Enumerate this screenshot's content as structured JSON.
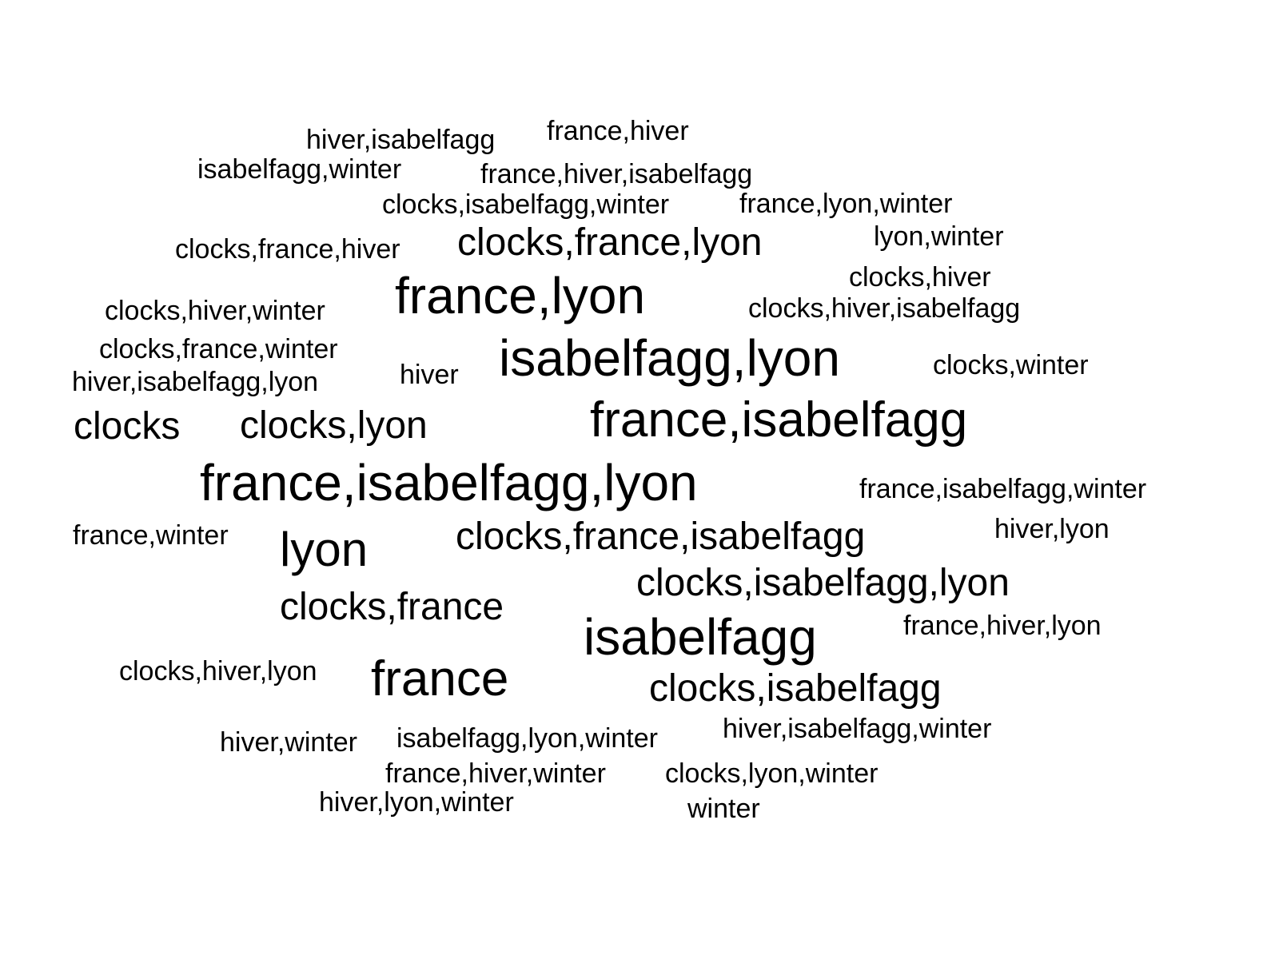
{
  "chart_data": {
    "type": "wordcloud",
    "title": "",
    "color": "#000000",
    "background": "#ffffff",
    "words": [
      {
        "text": "isabelfagg",
        "weight": 64
      },
      {
        "text": "france,isabelfagg,lyon",
        "weight": 64
      },
      {
        "text": "isabelfagg,lyon",
        "weight": 64
      },
      {
        "text": "france,isabelfagg",
        "weight": 62
      },
      {
        "text": "france,lyon",
        "weight": 64
      },
      {
        "text": "france",
        "weight": 62
      },
      {
        "text": "lyon",
        "weight": 60
      },
      {
        "text": "clocks,isabelfagg",
        "weight": 48
      },
      {
        "text": "clocks,isabelfagg,lyon",
        "weight": 48
      },
      {
        "text": "clocks,france,isabelfagg",
        "weight": 48
      },
      {
        "text": "clocks,france",
        "weight": 48
      },
      {
        "text": "clocks,lyon",
        "weight": 48
      },
      {
        "text": "clocks,france,lyon",
        "weight": 48
      },
      {
        "text": "clocks",
        "weight": 48
      },
      {
        "text": "hiver",
        "weight": 34
      },
      {
        "text": "winter",
        "weight": 34
      },
      {
        "text": "hiver,winter",
        "weight": 34
      },
      {
        "text": "hiver,isabelfagg",
        "weight": 34
      },
      {
        "text": "france,hiver",
        "weight": 34
      },
      {
        "text": "isabelfagg,winter",
        "weight": 34
      },
      {
        "text": "france,hiver,isabelfagg",
        "weight": 34
      },
      {
        "text": "clocks,isabelfagg,winter",
        "weight": 34
      },
      {
        "text": "france,lyon,winter",
        "weight": 34
      },
      {
        "text": "clocks,france,hiver",
        "weight": 34
      },
      {
        "text": "lyon,winter",
        "weight": 34
      },
      {
        "text": "clocks,hiver",
        "weight": 34
      },
      {
        "text": "clocks,hiver,winter",
        "weight": 34
      },
      {
        "text": "clocks,hiver,isabelfagg",
        "weight": 34
      },
      {
        "text": "clocks,france,winter",
        "weight": 34
      },
      {
        "text": "clocks,winter",
        "weight": 34
      },
      {
        "text": "hiver,isabelfagg,lyon",
        "weight": 34
      },
      {
        "text": "france,isabelfagg,winter",
        "weight": 34
      },
      {
        "text": "france,winter",
        "weight": 34
      },
      {
        "text": "hiver,lyon",
        "weight": 34
      },
      {
        "text": "france,hiver,lyon",
        "weight": 34
      },
      {
        "text": "clocks,hiver,lyon",
        "weight": 34
      },
      {
        "text": "isabelfagg,lyon,winter",
        "weight": 34
      },
      {
        "text": "hiver,isabelfagg,winter",
        "weight": 34
      },
      {
        "text": "france,hiver,winter",
        "weight": 34
      },
      {
        "text": "clocks,lyon,winter",
        "weight": 34
      },
      {
        "text": "hiver,lyon,winter",
        "weight": 34
      }
    ]
  }
}
